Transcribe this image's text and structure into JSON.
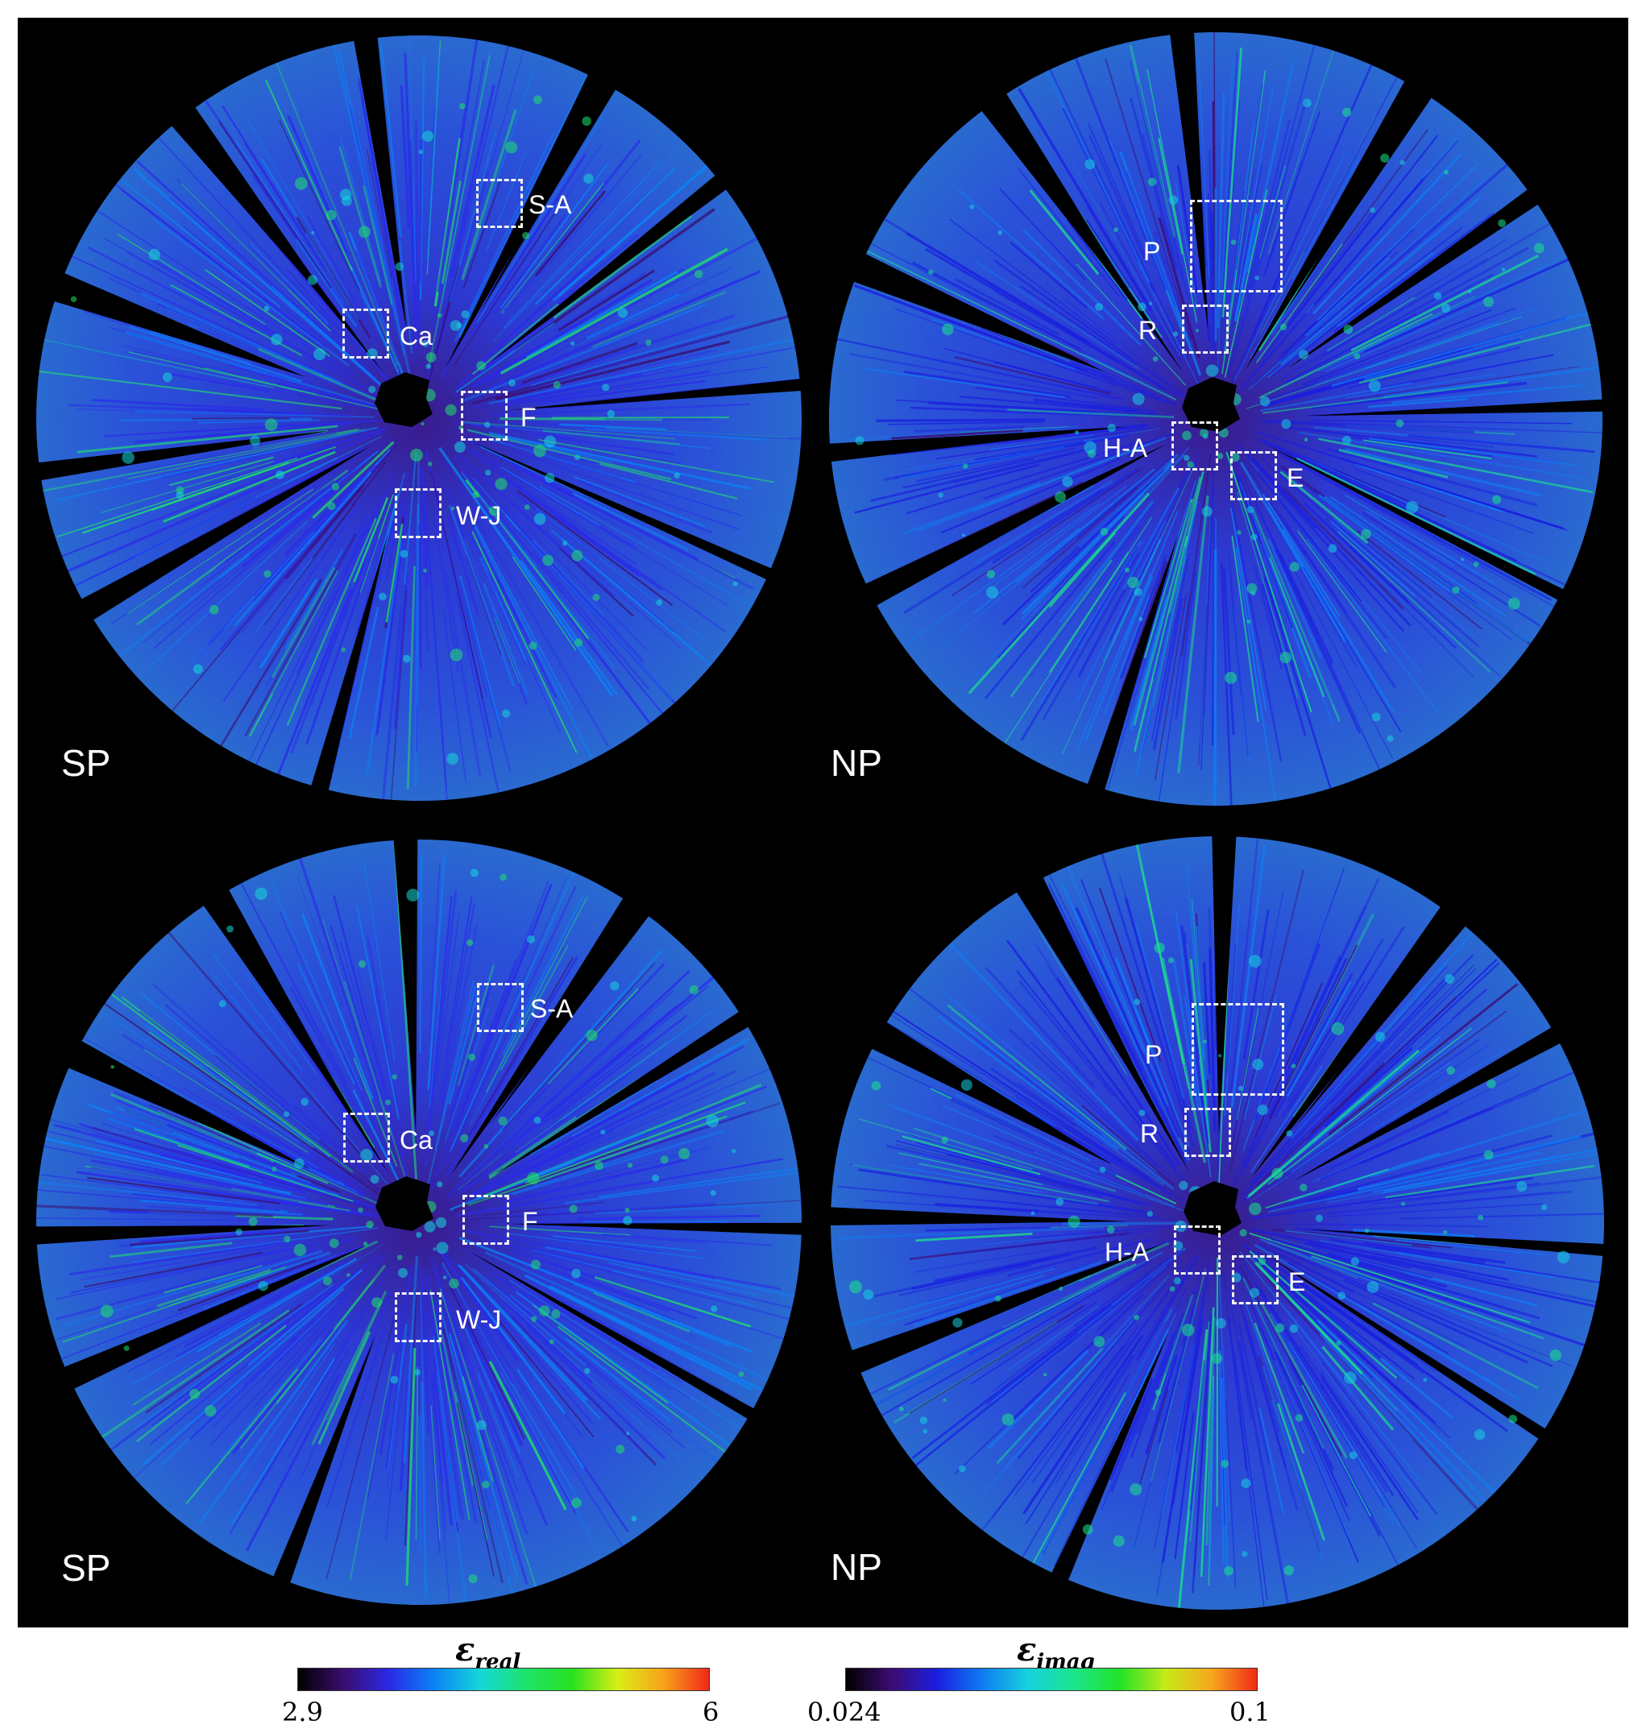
{
  "panels": [
    {
      "id": "sp-top",
      "pole_label": "SP",
      "regions": [
        {
          "id": "S-A",
          "label": "S-A"
        },
        {
          "id": "Ca",
          "label": "Ca"
        },
        {
          "id": "F",
          "label": "F"
        },
        {
          "id": "W-J",
          "label": "W-J"
        }
      ]
    },
    {
      "id": "np-top",
      "pole_label": "NP",
      "regions": [
        {
          "id": "P",
          "label": "P"
        },
        {
          "id": "R",
          "label": "R"
        },
        {
          "id": "H-A",
          "label": "H-A"
        },
        {
          "id": "E",
          "label": "E"
        }
      ]
    },
    {
      "id": "sp-bottom",
      "pole_label": "SP",
      "regions": [
        {
          "id": "S-A",
          "label": "S-A"
        },
        {
          "id": "Ca",
          "label": "Ca"
        },
        {
          "id": "F",
          "label": "F"
        },
        {
          "id": "W-J",
          "label": "W-J"
        }
      ]
    },
    {
      "id": "np-bottom",
      "pole_label": "NP",
      "regions": [
        {
          "id": "P",
          "label": "P"
        },
        {
          "id": "R",
          "label": "R"
        },
        {
          "id": "H-A",
          "label": "H-A"
        },
        {
          "id": "E",
          "label": "E"
        }
      ]
    }
  ],
  "colorbars": [
    {
      "id": "real",
      "symbol": "ε",
      "subscript": "real",
      "min_label": "2.9",
      "max_label": "6",
      "colors": [
        "#000000",
        "#3a0d6e",
        "#2a2ae8",
        "#0a84f5",
        "#14d8d8",
        "#1ee36a",
        "#27e21e",
        "#d8ee16",
        "#f8a21a",
        "#f02818"
      ]
    },
    {
      "id": "imag",
      "symbol": "ε",
      "subscript": "imag",
      "min_label": "0.024",
      "max_label": "0.1",
      "colors": [
        "#000000",
        "#3c0c72",
        "#1a1ee0",
        "#0f7ef2",
        "#16d2de",
        "#1ae58a",
        "#21e326",
        "#c4ea18",
        "#f7a81c",
        "#f22a16"
      ]
    }
  ],
  "colors": {
    "background": "#000000",
    "map_base": "#2a47c8",
    "map_shadow": "#0a0a14",
    "box_outline": "#f2f2f2"
  }
}
